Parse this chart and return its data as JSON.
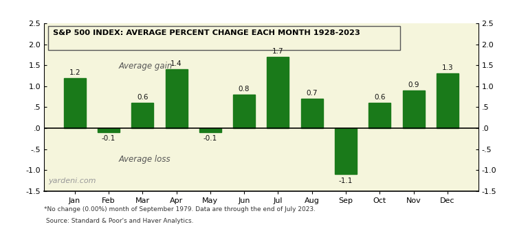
{
  "months": [
    "Jan",
    "Feb",
    "Mar",
    "Apr",
    "May",
    "Jun",
    "Jul",
    "Aug",
    "Sep",
    "Oct",
    "Nov",
    "Dec"
  ],
  "values": [
    1.2,
    -0.1,
    0.6,
    1.4,
    -0.1,
    0.8,
    1.7,
    0.7,
    -1.1,
    0.6,
    0.9,
    1.3
  ],
  "bar_color": "#1a7a1a",
  "background_color": "#f5f5dc",
  "outer_background": "#ffffff",
  "title": "S&P 500 INDEX: AVERAGE PERCENT CHANGE EACH MONTH 1928-2023",
  "ylim": [
    -1.5,
    2.5
  ],
  "yticks": [
    -1.5,
    -1.0,
    -0.5,
    0.0,
    0.5,
    1.0,
    1.5,
    2.0,
    2.5
  ],
  "ytick_labels": [
    "-1.5",
    "-1.0",
    "-.5",
    ".0",
    ".5",
    "1.0",
    "1.5",
    "2.0",
    "2.5"
  ],
  "avg_gain_text": "Average gain",
  "avg_loss_text": "Average loss",
  "watermark": "yardeni.com",
  "footnote_line1": "*No change (0.00%) month of September 1979. Data are through the end of July 2023.",
  "footnote_line2": " Source: Standard & Poor's and Haver Analytics."
}
